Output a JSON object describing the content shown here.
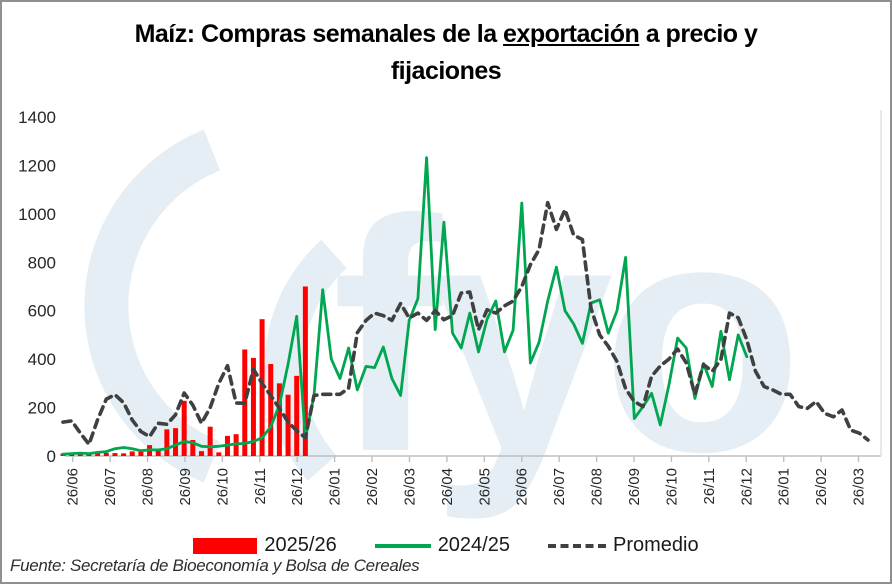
{
  "title": {
    "part1": "Maíz: Compras semanales de la ",
    "underlined": "exportación",
    "part2": " a precio y",
    "line2": "fijaciones"
  },
  "source": "Fuente: Secretaría de Bioeconomía y Bolsa de Cereales",
  "watermark": {
    "text": "fyo",
    "color": "#E4EEF4"
  },
  "axis_color": "#BFBFBF",
  "label_color": "#262626",
  "chart_data": {
    "type": "bar+line combo, weekly values",
    "title": "Maíz: Compras semanales de la exportación a precio y fijaciones",
    "ylim": [
      0,
      1400
    ],
    "ytick_step": 200,
    "y_tick_labels": [
      "0",
      "200",
      "400",
      "600",
      "800",
      "1000",
      "1200",
      "1400"
    ],
    "x_tick_labels": [
      "26/06",
      "26/07",
      "26/08",
      "26/09",
      "26/10",
      "26/11",
      "26/12",
      "26/01",
      "26/02",
      "26/03",
      "26/04",
      "26/05",
      "26/06",
      "26/07",
      "26/08",
      "26/09",
      "26/10",
      "26/11",
      "26/12",
      "26/01",
      "26/02",
      "26/03"
    ],
    "x_unit": "weeks (approx 4.33 weeks per month tick)",
    "legend_position": "bottom",
    "grid": false,
    "series": [
      {
        "name": "2025/26",
        "type": "bar",
        "color": "#FF0000",
        "values": [
          10,
          12,
          14,
          12,
          10,
          13,
          12,
          11,
          19,
          18,
          45,
          30,
          110,
          115,
          228,
          66,
          20,
          121,
          15,
          83,
          90,
          440,
          405,
          565,
          380,
          300,
          253,
          331,
          700
        ]
      },
      {
        "name": "2024/25",
        "type": "line",
        "color": "#00A650",
        "dash": false,
        "values": [
          8,
          10,
          12,
          10,
          15,
          18,
          30,
          35,
          30,
          22,
          25,
          25,
          30,
          45,
          60,
          55,
          40,
          38,
          40,
          45,
          50,
          52,
          60,
          75,
          120,
          210,
          380,
          577,
          73,
          250,
          687,
          400,
          320,
          446,
          273,
          370,
          365,
          450,
          320,
          250,
          560,
          650,
          1232,
          522,
          966,
          508,
          446,
          590,
          430,
          565,
          640,
          430,
          520,
          1045,
          384,
          470,
          640,
          780,
          600,
          545,
          465,
          632,
          645,
          507,
          600,
          820,
          155,
          204,
          259,
          128,
          293,
          487,
          446,
          238,
          382,
          287,
          515,
          315,
          500,
          410
        ]
      },
      {
        "name": "Promedio",
        "type": "line",
        "color": "#404040",
        "dash": true,
        "values": [
          140,
          145,
          95,
          48,
          150,
          235,
          253,
          220,
          149,
          101,
          80,
          135,
          131,
          170,
          260,
          210,
          135,
          200,
          300,
          373,
          219,
          218,
          359,
          300,
          250,
          197,
          140,
          105,
          75,
          250,
          255,
          255,
          255,
          280,
          509,
          560,
          590,
          580,
          560,
          630,
          570,
          590,
          560,
          600,
          563,
          580,
          673,
          677,
          521,
          604,
          590,
          620,
          640,
          700,
          790,
          853,
          1046,
          936,
          1018,
          912,
          894,
          610,
          500,
          453,
          390,
          278,
          225,
          204,
          329,
          372,
          400,
          442,
          385,
          255,
          378,
          350,
          398,
          590,
          571,
          480,
          350,
          287,
          273,
          255,
          255,
          204,
          197,
          225,
          176,
          162,
          190,
          107,
          94,
          66
        ]
      }
    ]
  }
}
